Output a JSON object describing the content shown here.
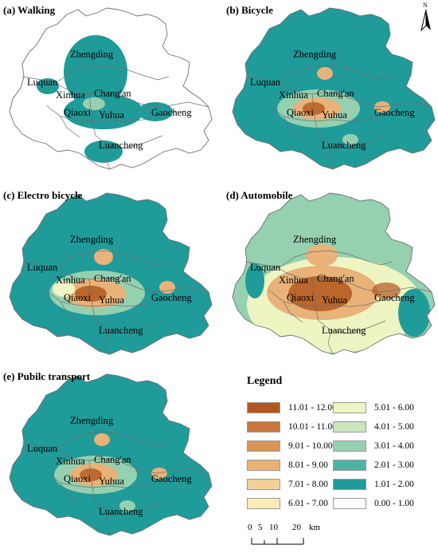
{
  "panels": [
    {
      "id": "a",
      "title": "(a) Walking",
      "level": 0
    },
    {
      "id": "b",
      "title": "(b) Bicycle",
      "level": 1
    },
    {
      "id": "c",
      "title": "(c) Electro bicycle",
      "level": 2
    },
    {
      "id": "d",
      "title": "(d) Automobile",
      "level": 3
    },
    {
      "id": "e",
      "title": "(e) Pubilc transport",
      "level": 1
    }
  ],
  "place_names": {
    "zhengding": "Zhengding",
    "luquan": "Luquan",
    "xinhua": "Xinhua",
    "changan": "Chang'an",
    "qiaoxi": "Qiaoxi",
    "yuhua": "Yuhua",
    "gaocheng": "Gaocheng",
    "luancheng": "Luancheng"
  },
  "legend": {
    "title": "Legend",
    "left_column": [
      {
        "label": "11.01 - 12.00",
        "color": "#b3581e"
      },
      {
        "label": "10.01 - 11.00",
        "color": "#c9753c"
      },
      {
        "label": "9.01 - 10.00",
        "color": "#da9556"
      },
      {
        "label": "8.01 - 9.00",
        "color": "#e8b278"
      },
      {
        "label": "7.01 - 8.00",
        "color": "#f3cf98"
      },
      {
        "label": "6.01 - 7.00",
        "color": "#faecb4"
      }
    ],
    "right_column": [
      {
        "label": "5.01 - 6.00",
        "color": "#eef5c2"
      },
      {
        "label": "4.01 - 5.00",
        "color": "#c9e6bd"
      },
      {
        "label": "3.01 - 4.00",
        "color": "#95d0b0"
      },
      {
        "label": "2.01 - 3.00",
        "color": "#4fb3a4"
      },
      {
        "label": "1.01 - 2.00",
        "color": "#1f9b9a"
      },
      {
        "label": "0.00 - 1.00",
        "color": "#ffffff"
      }
    ]
  },
  "north": {
    "label": "N"
  },
  "scale": {
    "ticks": [
      "0",
      "5",
      "10",
      "20"
    ],
    "unit": "km"
  },
  "colors": {
    "boundary": "#6e6e6e",
    "teal": "#1f9b9a",
    "teal_light": "#4fb3a4",
    "green": "#95d0b0",
    "pale": "#eef5c2",
    "orange": "#e8b278",
    "brown": "#b3581e"
  }
}
